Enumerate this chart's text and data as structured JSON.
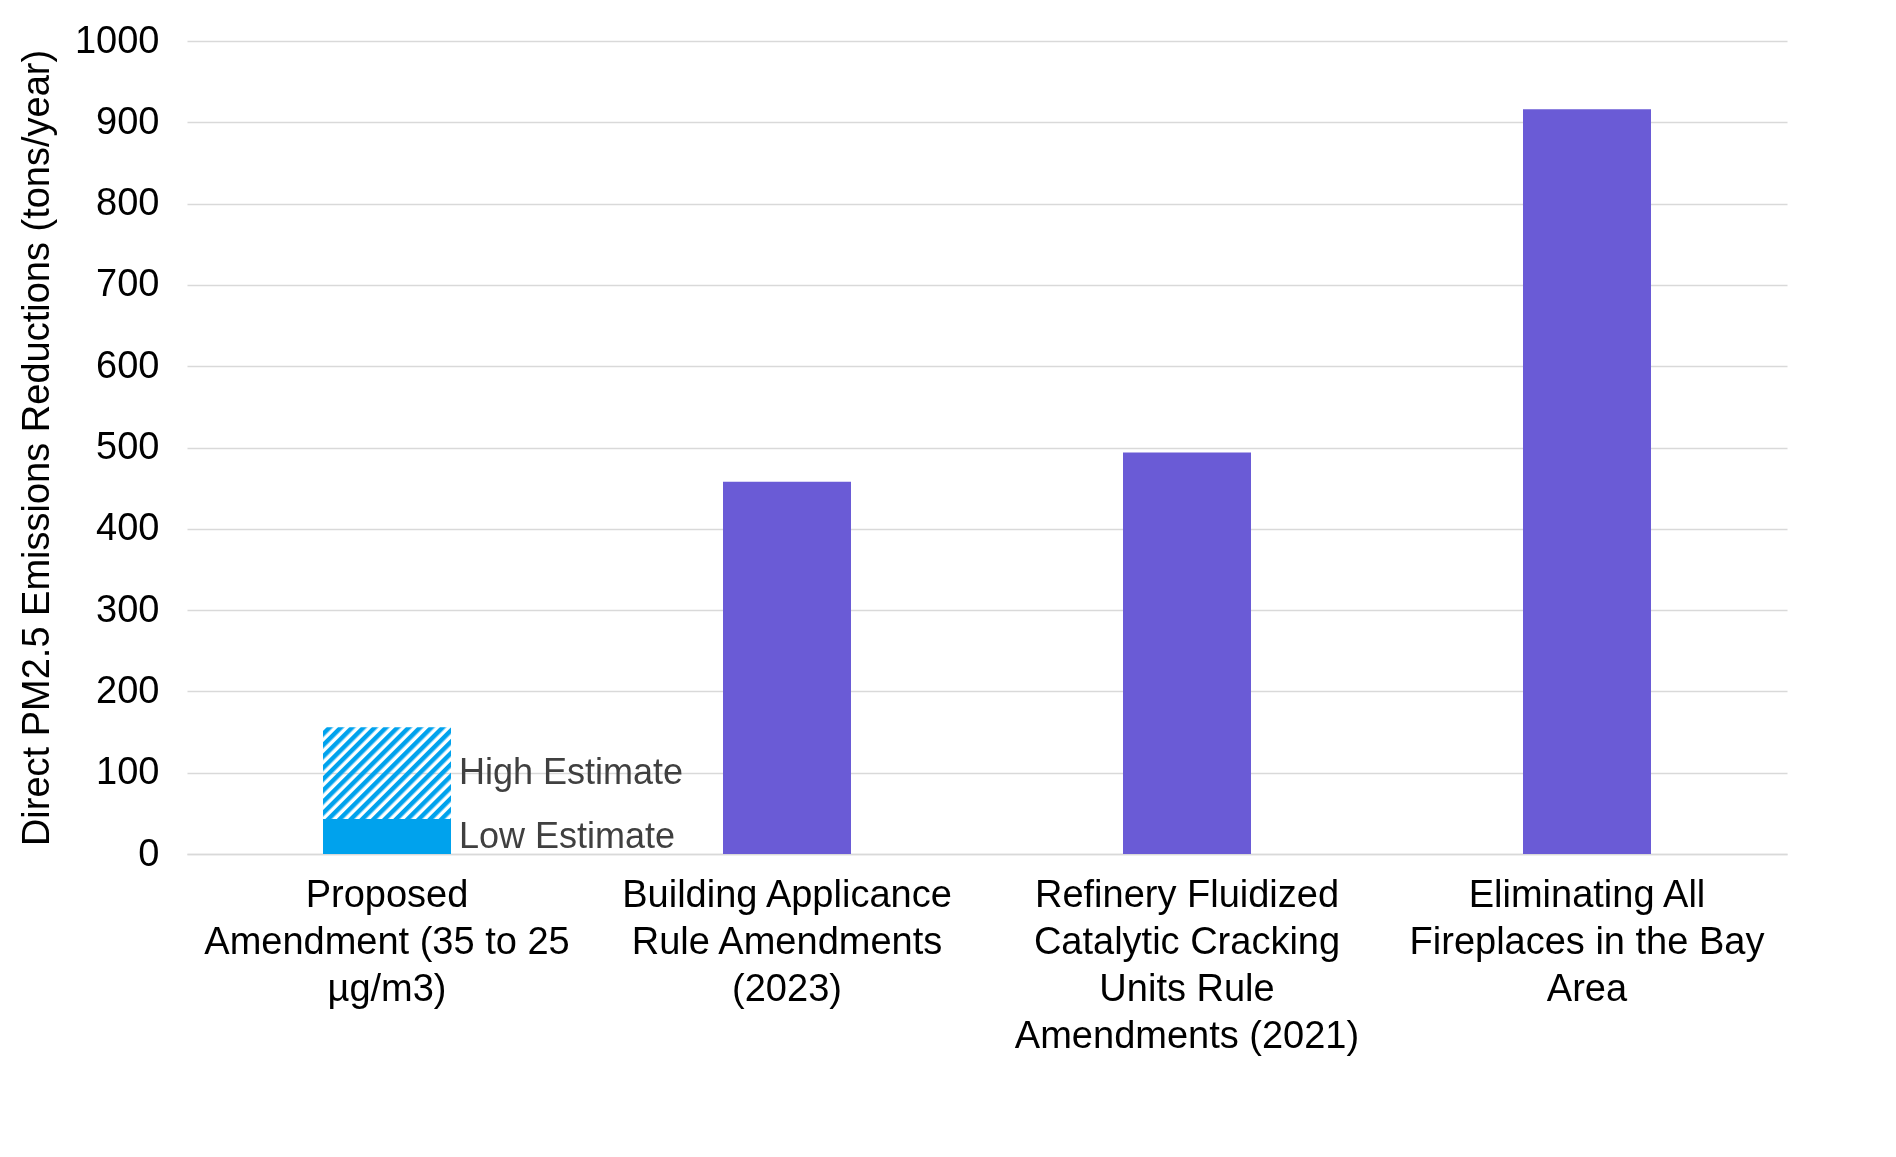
{
  "chart_data": {
    "type": "bar",
    "stacked": true,
    "ylabel": "Direct PM2.5 Emissions Reductions (tons/year)",
    "categories": [
      "Proposed Amendment (35 to 25 µg/m3)",
      "Building Applicance Rule Amendments (2023)",
      "Refinery Fluidized Catalytic Cracking Units Rule Amendments (2021)",
      "Eliminating All Fireplaces in the Bay Area"
    ],
    "series": [
      {
        "name": "Low Estimate",
        "color": "#00a2ed",
        "values": [
          43,
          null,
          null,
          null
        ]
      },
      {
        "name": "High Estimate",
        "color": "#00a2ed",
        "values": [
          113,
          null,
          null,
          null
        ]
      },
      {
        "color": "#6a5bd6",
        "values": [
          null,
          458,
          494,
          916
        ]
      }
    ],
    "ylim": [
      0,
      1000
    ],
    "yticks": [
      0,
      100,
      200,
      300,
      400,
      500,
      600,
      700,
      800,
      900,
      1000
    ],
    "grid": "y"
  }
}
